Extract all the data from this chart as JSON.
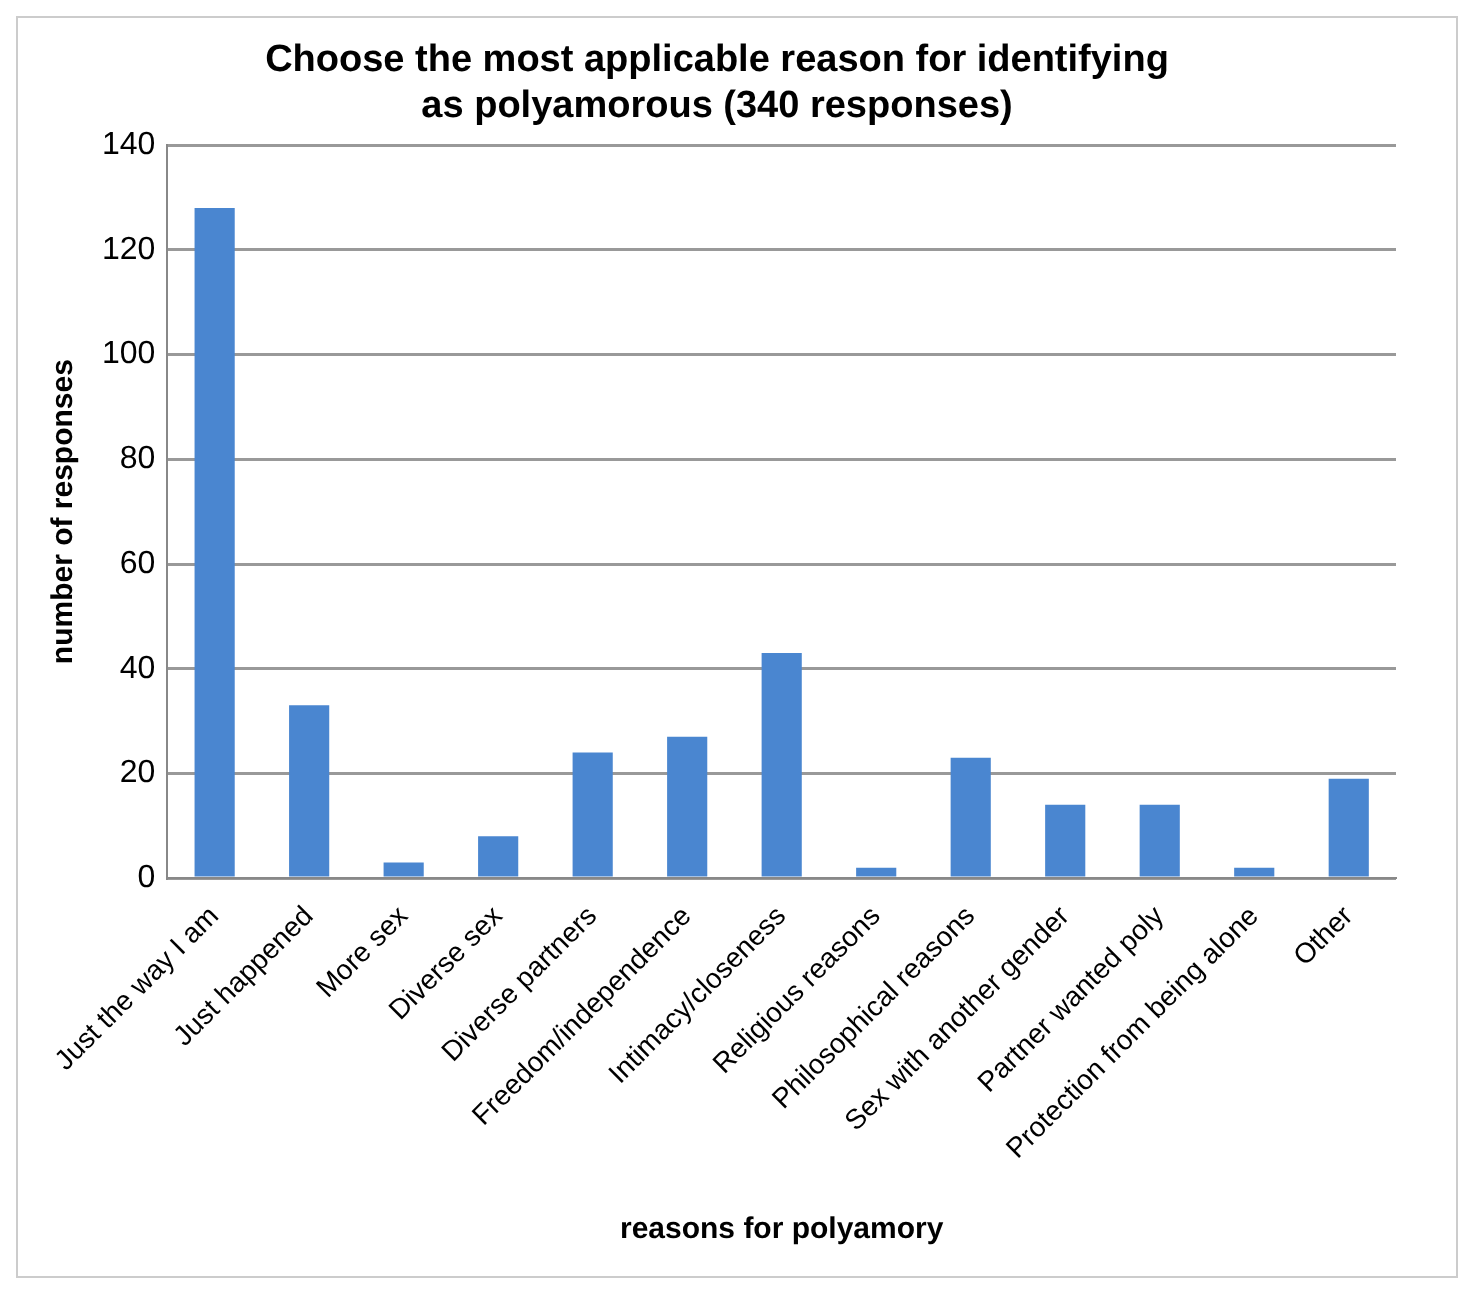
{
  "chart_data": {
    "type": "bar",
    "title": "Choose the most applicable reason for identifying as polyamorous (340 responses)",
    "xlabel": "reasons for polyamory",
    "ylabel": "number of responses",
    "categories": [
      "Just the way I am",
      "Just happened",
      "More sex",
      "Diverse sex",
      "Diverse partners",
      "Freedom/independence",
      "Intimacy/closeness",
      "Religious reasons",
      "Philosophical reasons",
      "Sex with another gender",
      "Partner wanted poly",
      "Protection from being alone",
      "Other"
    ],
    "values": [
      128,
      33,
      3,
      8,
      24,
      27,
      43,
      2,
      23,
      14,
      14,
      2,
      19
    ],
    "color": "#4a86d0",
    "ylim": [
      0,
      140
    ],
    "yticks": [
      0,
      20,
      40,
      60,
      80,
      100,
      120,
      140
    ],
    "grid": "y",
    "legend": false
  }
}
